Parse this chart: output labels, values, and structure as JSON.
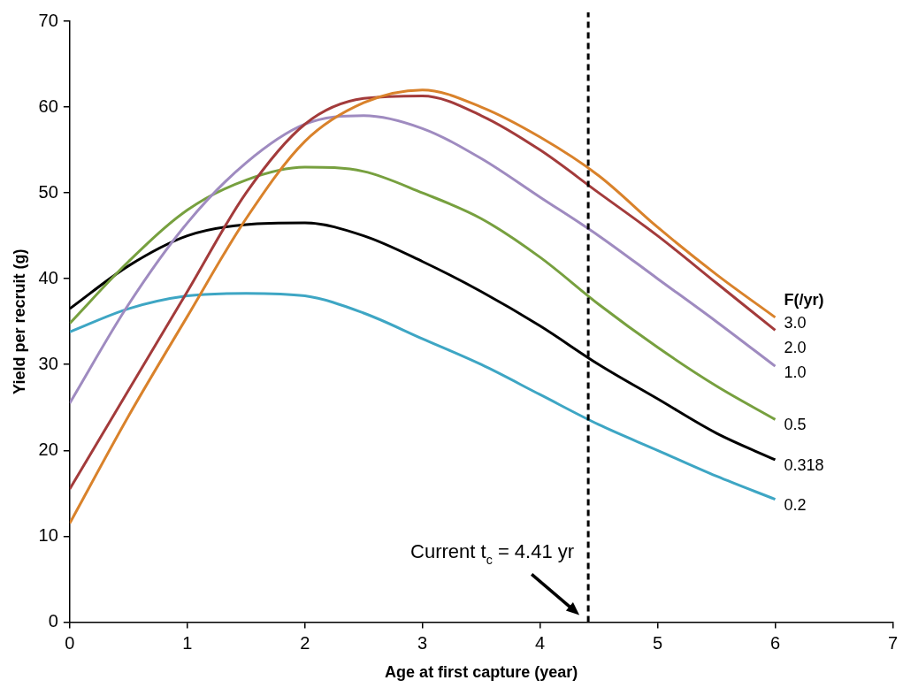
{
  "chart_data": {
    "type": "line",
    "xlabel": "Age at first capture (year)",
    "ylabel": "Yield per recruit (g)",
    "legend_title": "F(/yr)",
    "xlim": [
      0,
      7
    ],
    "xticks": [
      0,
      1,
      2,
      3,
      4,
      5,
      6,
      7
    ],
    "ylim": [
      0,
      70
    ],
    "yticks": [
      0,
      10,
      20,
      30,
      40,
      50,
      60,
      70
    ],
    "grid": false,
    "legend": false,
    "marker": "none",
    "line_style": "solid",
    "x": [
      0,
      0.5,
      1,
      1.5,
      2,
      2.5,
      3,
      3.5,
      4,
      4.5,
      5,
      5.5,
      6
    ],
    "series": [
      {
        "name": "3.0",
        "color": "#d9822b",
        "values": [
          11.5,
          24,
          35.6,
          47,
          56,
          60.5,
          62,
          60,
          56.5,
          52,
          46,
          40.5,
          35.5
        ]
      },
      {
        "name": "2.0",
        "color": "#a33b3b",
        "values": [
          15.5,
          27,
          38.5,
          50,
          58,
          61,
          61.3,
          59,
          55,
          50,
          45,
          39.5,
          34
        ]
      },
      {
        "name": "1.0",
        "color": "#9f8bc0",
        "values": [
          25.5,
          37,
          46.5,
          53.5,
          58,
          59,
          57.5,
          54,
          49.5,
          45,
          40,
          35,
          29.8
        ]
      },
      {
        "name": "0.5",
        "color": "#77a03f",
        "values": [
          34.8,
          42,
          48,
          51.5,
          53,
          52.5,
          50,
          47,
          42.5,
          37,
          32,
          27.5,
          23.6
        ]
      },
      {
        "name": "0.318",
        "color": "#000000",
        "values": [
          36.5,
          41.5,
          45,
          46.3,
          46.5,
          45,
          42,
          38.5,
          34.5,
          30,
          26,
          22,
          18.9
        ]
      },
      {
        "name": "0.2",
        "color": "#3ea6c4",
        "values": [
          33.8,
          36.5,
          38,
          38.3,
          38,
          36,
          33,
          30,
          26.5,
          23,
          20,
          17,
          14.3
        ]
      }
    ],
    "ref_lines": [
      {
        "axis": "x",
        "value": 4.41,
        "color": "#000000",
        "line_style": "dashed"
      }
    ],
    "annotations": [
      {
        "text": "Current t$_{c}$ = 4.41 yr",
        "x": 4.41,
        "y": 0
      }
    ]
  }
}
